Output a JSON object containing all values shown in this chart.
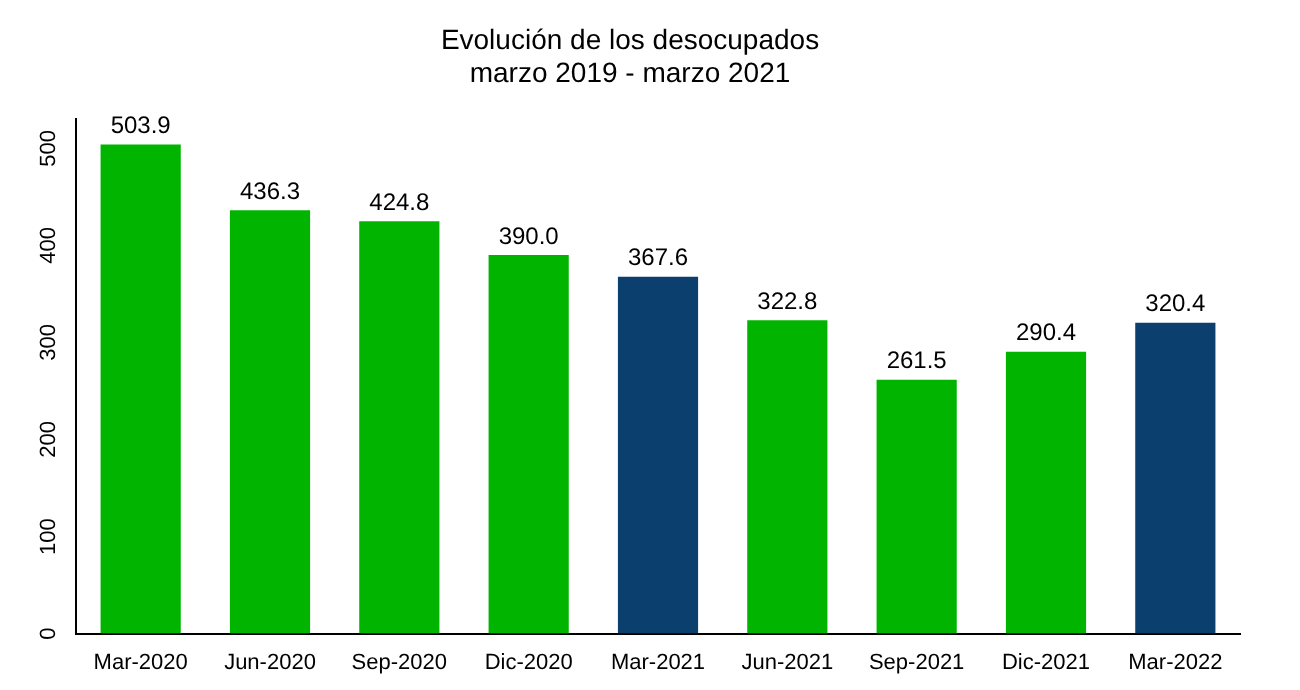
{
  "chart_data": {
    "type": "bar",
    "title": "Evolución de los desocupados",
    "subtitle": "marzo 2019 - marzo 2021",
    "categories": [
      "Mar-2020",
      "Jun-2020",
      "Sep-2020",
      "Dic-2020",
      "Mar-2021",
      "Jun-2021",
      "Sep-2021",
      "Dic-2021",
      "Mar-2022"
    ],
    "values": [
      503.9,
      436.3,
      424.8,
      390.0,
      367.6,
      322.8,
      261.5,
      290.4,
      320.4
    ],
    "value_labels": [
      "503.9",
      "436.3",
      "424.8",
      "390.0",
      "367.6",
      "322.8",
      "261.5",
      "290.4",
      "320.4"
    ],
    "colors": [
      "#00b400",
      "#00b400",
      "#00b400",
      "#00b400",
      "#0a3f6e",
      "#00b400",
      "#00b400",
      "#00b400",
      "#0a3f6e"
    ],
    "ylim": [
      0,
      530
    ],
    "yticks": [
      0,
      100,
      200,
      300,
      400,
      500
    ],
    "grid": false,
    "legend": false
  }
}
